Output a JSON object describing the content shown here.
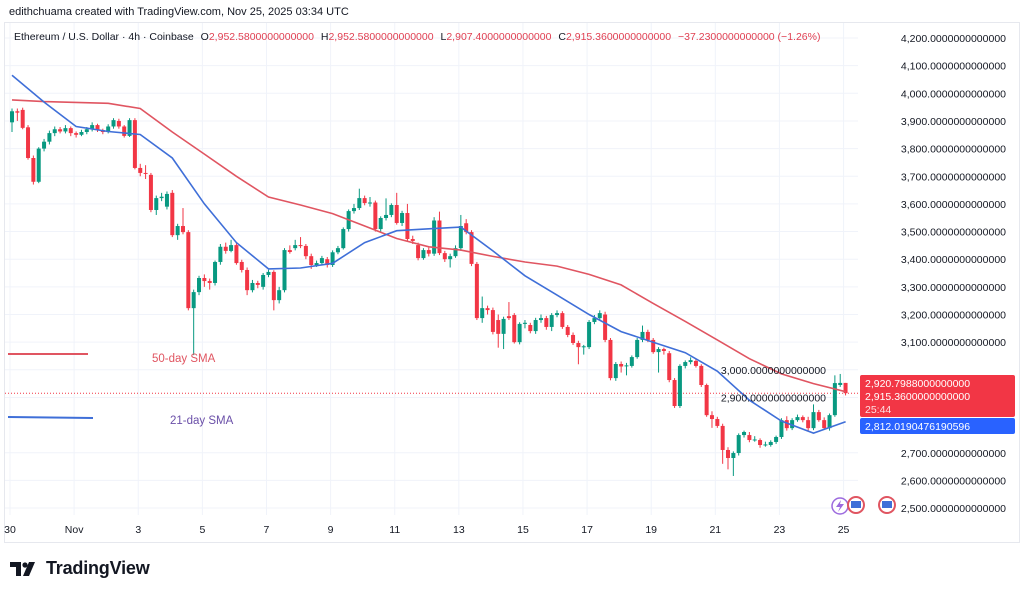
{
  "credit": "edithchuama created with TradingView.com, Nov 25, 2025 03:34 UTC",
  "legend": {
    "symbol": "Ethereum / U.S. Dollar · 4h · Coinbase",
    "o_label": "O",
    "o": "2,952.5800000000000",
    "h_label": "H",
    "h": "2,952.5800000000000",
    "l_label": "L",
    "l": "2,907.4000000000000",
    "c_label": "C",
    "c": "2,915.3600000000000",
    "change": "−37.2300000000000 (−1.26%)"
  },
  "colors": {
    "up": "#089981",
    "down": "#f23645",
    "sma50": "#e05561",
    "sma21": "#3f6fd8",
    "label": "#6a4fa8",
    "grid": "#f0f3fa"
  },
  "annotations": {
    "sma50_label": "50-day SMA",
    "sma21_label": "21-day SMA"
  },
  "price_tags": {
    "sma50": "2,920.7988000000000",
    "last": "2,915.3600000000000",
    "countdown": "25:44",
    "sma21": "2,812.0190476190596"
  },
  "logo": {
    "text": "TradingView"
  },
  "chart_data": {
    "type": "candlestick",
    "interval": "4h",
    "first_candle": "Oct 30 00:00",
    "ylim": [
      2480,
      4230
    ],
    "grid": true,
    "y_ticks": [
      4200,
      4100,
      4000,
      3900,
      3800,
      3700,
      3600,
      3500,
      3400,
      3300,
      3200,
      3100,
      3000,
      2900,
      2700,
      2600,
      2500
    ],
    "y_tick_labels": [
      "4,200.0000000000000",
      "4,100.0000000000000",
      "4,000.0000000000000",
      "3,900.0000000000000",
      "3,800.0000000000000",
      "3,700.0000000000000",
      "3,600.0000000000000",
      "3,500.0000000000000",
      "3,400.0000000000000",
      "3,300.0000000000000",
      "3,200.0000000000000",
      "3,100.0000000000000",
      "3,000.0000000000000",
      "2,900.0000000000000",
      "2,700.0000000000000",
      "2,600.0000000000000",
      "2,500.0000000000000"
    ],
    "x_ticks": [
      {
        "day": 0,
        "label": "30"
      },
      {
        "day": 2,
        "label": "Nov"
      },
      {
        "day": 4,
        "label": "3"
      },
      {
        "day": 6,
        "label": "5"
      },
      {
        "day": 8,
        "label": "7"
      },
      {
        "day": 10,
        "label": "9"
      },
      {
        "day": 12,
        "label": "11"
      },
      {
        "day": 14,
        "label": "13"
      },
      {
        "day": 16,
        "label": "15"
      },
      {
        "day": 18,
        "label": "17"
      },
      {
        "day": 20,
        "label": "19"
      },
      {
        "day": 22,
        "label": "21"
      },
      {
        "day": 24,
        "label": "23"
      },
      {
        "day": 26,
        "label": "25"
      }
    ],
    "candles_ohlc": [
      [
        3895,
        3945,
        3860,
        3935
      ],
      [
        3935,
        3945,
        3900,
        3930
      ],
      [
        3940,
        3948,
        3870,
        3875
      ],
      [
        3877,
        3885,
        3760,
        3766
      ],
      [
        3766,
        3775,
        3670,
        3680
      ],
      [
        3680,
        3805,
        3675,
        3800
      ],
      [
        3800,
        3835,
        3790,
        3825
      ],
      [
        3825,
        3865,
        3815,
        3856
      ],
      [
        3856,
        3880,
        3845,
        3870
      ],
      [
        3870,
        3878,
        3855,
        3862
      ],
      [
        3862,
        3885,
        3855,
        3874
      ],
      [
        3874,
        3880,
        3845,
        3856
      ],
      [
        3856,
        3862,
        3840,
        3850
      ],
      [
        3850,
        3868,
        3845,
        3860
      ],
      [
        3860,
        3878,
        3852,
        3870
      ],
      [
        3870,
        3895,
        3862,
        3885
      ],
      [
        3885,
        3890,
        3860,
        3867
      ],
      [
        3867,
        3872,
        3852,
        3860
      ],
      [
        3860,
        3888,
        3855,
        3880
      ],
      [
        3880,
        3910,
        3872,
        3903
      ],
      [
        3900,
        3908,
        3872,
        3880
      ],
      [
        3880,
        3885,
        3840,
        3846
      ],
      [
        3846,
        3910,
        3842,
        3903
      ],
      [
        3903,
        3910,
        3725,
        3730
      ],
      [
        3730,
        3745,
        3700,
        3712
      ],
      [
        3712,
        3740,
        3690,
        3710
      ],
      [
        3705,
        3712,
        3570,
        3578
      ],
      [
        3578,
        3630,
        3560,
        3621
      ],
      [
        3621,
        3640,
        3610,
        3626
      ],
      [
        3590,
        3645,
        3580,
        3636
      ],
      [
        3640,
        3650,
        3480,
        3487
      ],
      [
        3487,
        3528,
        3470,
        3520
      ],
      [
        3520,
        3585,
        3490,
        3498
      ],
      [
        3498,
        3505,
        3215,
        3223
      ],
      [
        3223,
        3290,
        3053,
        3281
      ],
      [
        3281,
        3340,
        3270,
        3332
      ],
      [
        3332,
        3345,
        3300,
        3321
      ],
      [
        3321,
        3330,
        3290,
        3314
      ],
      [
        3314,
        3395,
        3305,
        3390
      ],
      [
        3390,
        3455,
        3380,
        3445
      ],
      [
        3445,
        3460,
        3420,
        3430
      ],
      [
        3430,
        3470,
        3425,
        3451
      ],
      [
        3451,
        3458,
        3380,
        3386
      ],
      [
        3390,
        3398,
        3352,
        3361
      ],
      [
        3361,
        3370,
        3270,
        3288
      ],
      [
        3288,
        3325,
        3280,
        3314
      ],
      [
        3314,
        3322,
        3295,
        3307
      ],
      [
        3300,
        3350,
        3290,
        3343
      ],
      [
        3343,
        3362,
        3335,
        3354
      ],
      [
        3354,
        3360,
        3215,
        3252
      ],
      [
        3252,
        3300,
        3240,
        3288
      ],
      [
        3288,
        3440,
        3280,
        3433
      ],
      [
        3433,
        3450,
        3420,
        3426
      ],
      [
        3440,
        3470,
        3432,
        3451
      ],
      [
        3451,
        3480,
        3440,
        3448
      ],
      [
        3448,
        3455,
        3400,
        3411
      ],
      [
        3411,
        3420,
        3365,
        3379
      ],
      [
        3379,
        3395,
        3372,
        3386
      ],
      [
        3386,
        3412,
        3380,
        3404
      ],
      [
        3400,
        3408,
        3370,
        3379
      ],
      [
        3379,
        3432,
        3372,
        3425
      ],
      [
        3425,
        3448,
        3418,
        3440
      ],
      [
        3440,
        3515,
        3435,
        3509
      ],
      [
        3509,
        3580,
        3500,
        3574
      ],
      [
        3574,
        3600,
        3565,
        3585
      ],
      [
        3585,
        3655,
        3578,
        3621
      ],
      [
        3621,
        3630,
        3595,
        3603
      ],
      [
        3603,
        3625,
        3590,
        3605
      ],
      [
        3605,
        3612,
        3500,
        3509
      ],
      [
        3509,
        3555,
        3500,
        3549
      ],
      [
        3549,
        3620,
        3540,
        3560
      ],
      [
        3560,
        3602,
        3552,
        3596
      ],
      [
        3596,
        3640,
        3525,
        3531
      ],
      [
        3531,
        3575,
        3520,
        3567
      ],
      [
        3567,
        3600,
        3465,
        3473
      ],
      [
        3473,
        3485,
        3455,
        3466
      ],
      [
        3451,
        3460,
        3396,
        3404
      ],
      [
        3404,
        3440,
        3398,
        3433
      ],
      [
        3433,
        3442,
        3410,
        3420
      ],
      [
        3420,
        3552,
        3412,
        3540
      ],
      [
        3540,
        3572,
        3415,
        3422
      ],
      [
        3422,
        3430,
        3390,
        3400
      ],
      [
        3400,
        3420,
        3370,
        3411
      ],
      [
        3411,
        3450,
        3405,
        3440
      ],
      [
        3440,
        3560,
        3430,
        3520
      ],
      [
        3530,
        3545,
        3490,
        3498
      ],
      [
        3498,
        3505,
        3375,
        3383
      ],
      [
        3383,
        3390,
        3180,
        3187
      ],
      [
        3187,
        3265,
        3170,
        3223
      ],
      [
        3223,
        3232,
        3200,
        3216
      ],
      [
        3216,
        3225,
        3128,
        3137
      ],
      [
        3180,
        3200,
        3080,
        3130
      ],
      [
        3130,
        3192,
        3075,
        3184
      ],
      [
        3194,
        3245,
        3180,
        3187
      ],
      [
        3198,
        3205,
        3095,
        3100
      ],
      [
        3100,
        3172,
        3092,
        3166
      ],
      [
        3166,
        3180,
        3150,
        3170
      ],
      [
        3162,
        3170,
        3132,
        3140
      ],
      [
        3140,
        3188,
        3130,
        3180
      ],
      [
        3180,
        3200,
        3170,
        3187
      ],
      [
        3187,
        3195,
        3145,
        3155
      ],
      [
        3155,
        3205,
        3140,
        3198
      ],
      [
        3198,
        3215,
        3190,
        3205
      ],
      [
        3205,
        3212,
        3148,
        3155
      ],
      [
        3155,
        3162,
        3118,
        3126
      ],
      [
        3126,
        3135,
        3090,
        3097
      ],
      [
        3097,
        3105,
        3020,
        3082
      ],
      [
        3082,
        3090,
        3055,
        3085
      ],
      [
        3082,
        3180,
        3075,
        3173
      ],
      [
        3173,
        3198,
        3165,
        3187
      ],
      [
        3187,
        3215,
        3180,
        3205
      ],
      [
        3200,
        3210,
        3100,
        3108
      ],
      [
        3108,
        3115,
        2962,
        2970
      ],
      [
        2970,
        3028,
        2960,
        3021
      ],
      [
        3021,
        3030,
        2990,
        3012
      ],
      [
        3014,
        3025,
        2980,
        3016
      ],
      [
        3014,
        3052,
        3008,
        3046
      ],
      [
        3046,
        3115,
        3040,
        3108
      ],
      [
        3108,
        3160,
        3100,
        3137
      ],
      [
        3137,
        3145,
        3100,
        3108
      ],
      [
        3108,
        3115,
        3058,
        3064
      ],
      [
        3064,
        3082,
        2990,
        3075
      ],
      [
        3075,
        3080,
        3055,
        3068
      ],
      [
        3060,
        3068,
        2955,
        2963
      ],
      [
        2963,
        2970,
        2862,
        2869
      ],
      [
        2869,
        3020,
        2862,
        3014
      ],
      [
        3014,
        3034,
        3005,
        3028
      ],
      [
        3028,
        3045,
        3020,
        3035
      ],
      [
        3032,
        3040,
        3008,
        3014
      ],
      [
        3014,
        3020,
        2938,
        2945
      ],
      [
        2945,
        2950,
        2830,
        2836
      ],
      [
        2836,
        2850,
        2790,
        2822
      ],
      [
        2822,
        2830,
        2790,
        2797
      ],
      [
        2797,
        2805,
        2660,
        2710
      ],
      [
        2710,
        2720,
        2640,
        2681
      ],
      [
        2681,
        2705,
        2616,
        2699
      ],
      [
        2699,
        2770,
        2690,
        2764
      ],
      [
        2764,
        2780,
        2755,
        2775
      ],
      [
        2764,
        2775,
        2738,
        2746
      ],
      [
        2746,
        2760,
        2740,
        2748
      ],
      [
        2746,
        2752,
        2718,
        2728
      ],
      [
        2728,
        2740,
        2722,
        2730
      ],
      [
        2728,
        2745,
        2722,
        2739
      ],
      [
        2739,
        2762,
        2732,
        2757
      ],
      [
        2757,
        2825,
        2750,
        2818
      ],
      [
        2818,
        2832,
        2780,
        2789
      ],
      [
        2789,
        2825,
        2782,
        2818
      ],
      [
        2818,
        2838,
        2812,
        2829
      ],
      [
        2829,
        2835,
        2810,
        2818
      ],
      [
        2818,
        2830,
        2780,
        2789
      ],
      [
        2789,
        2875,
        2782,
        2847
      ],
      [
        2847,
        2855,
        2812,
        2818
      ],
      [
        2818,
        2828,
        2785,
        2789
      ],
      [
        2789,
        2842,
        2780,
        2836
      ],
      [
        2836,
        2980,
        2830,
        2952
      ],
      [
        2945,
        2985,
        2938,
        2952.58
      ],
      [
        2952.58,
        2952.58,
        2907.4,
        2915.36
      ]
    ],
    "sma_dates": [
      "Oct 30",
      "Oct 31",
      "Nov 1",
      "Nov 2",
      "Nov 3",
      "Nov 4",
      "Nov 5",
      "Nov 6",
      "Nov 7",
      "Nov 8",
      "Nov 9",
      "Nov 10",
      "Nov 11",
      "Nov 12",
      "Nov 13",
      "Nov 14",
      "Nov 15",
      "Nov 16",
      "Nov 17",
      "Nov 18",
      "Nov 19",
      "Nov 20",
      "Nov 21",
      "Nov 22",
      "Nov 23",
      "Nov 24",
      "Nov 25"
    ],
    "series": [
      {
        "name": "50-day SMA",
        "values": [
          3976,
          3970,
          3967,
          3964,
          3945,
          3860,
          3780,
          3700,
          3625,
          3596,
          3565,
          3520,
          3475,
          3445,
          3433,
          3410,
          3390,
          3375,
          3345,
          3307,
          3240,
          3175,
          3108,
          3040,
          2985,
          2950,
          2920.8
        ]
      },
      {
        "name": "21-day SMA",
        "values": [
          4065,
          3968,
          3880,
          3862,
          3851,
          3766,
          3600,
          3460,
          3365,
          3368,
          3385,
          3460,
          3503,
          3510,
          3516,
          3430,
          3340,
          3270,
          3200,
          3138,
          3100,
          3062,
          2995,
          2890,
          2815,
          2771,
          2812.02
        ]
      }
    ],
    "last_price": 2915.36
  }
}
